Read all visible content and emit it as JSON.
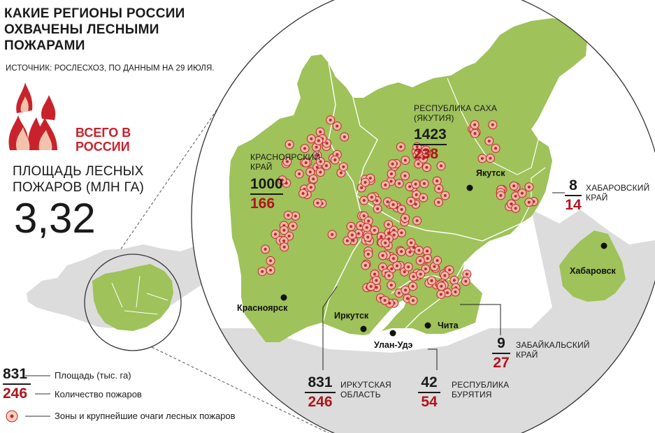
{
  "title": "КАКИЕ РЕГИОНЫ РОССИИ ОХВАЧЕНЫ ЛЕСНЫМИ ПОЖАРАМИ",
  "source": "ИСТОЧНИК: РОСЛЕСХОЗ, ПО ДАННЫМ НА 29 ИЮЛЯ.",
  "total": {
    "label": "ВСЕГО В РОССИИ",
    "area_label": "ПЛОЩАДЬ ЛЕСНЫХ ПОЖАРОВ (МЛН ГА)",
    "area_value": "3,32"
  },
  "regions": [
    {
      "name": "КРАСНОЯРСКИЙ КРАЙ",
      "area": "1000",
      "fires": "166"
    },
    {
      "name": "РЕСПУБЛИКА САХА (ЯКУТИЯ)",
      "area": "1423",
      "fires": "238"
    },
    {
      "name": "ХАБАРОВСКИЙ КРАЙ",
      "area": "8",
      "fires": "14"
    },
    {
      "name": "ЗАБАЙКАЛЬСКИЙ КРАЙ",
      "area": "9",
      "fires": "27"
    },
    {
      "name": "ИРКУТСКАЯ ОБЛАСТЬ",
      "area": "831",
      "fires": "246"
    },
    {
      "name": "РЕСПУБЛИКА БУРЯТИЯ",
      "area": "42",
      "fires": "54"
    }
  ],
  "cities": [
    "Красноярск",
    "Якутск",
    "Хабаровск",
    "Иркутск",
    "Улан-Удэ",
    "Чита"
  ],
  "legend": {
    "sample_area": "831",
    "sample_fires": "246",
    "area_text": "Площадь (тыс. га)",
    "fires_text": "Количество пожаров",
    "zones_text": "Зоны и крупнейшие очаги лесных пожаров"
  },
  "colors": {
    "land": "#9fc25a",
    "land_outside": "#dcdcdc",
    "fire_red": "#c8232c",
    "fire_ring": "#e9b9a6",
    "number_red": "#b0141c"
  }
}
